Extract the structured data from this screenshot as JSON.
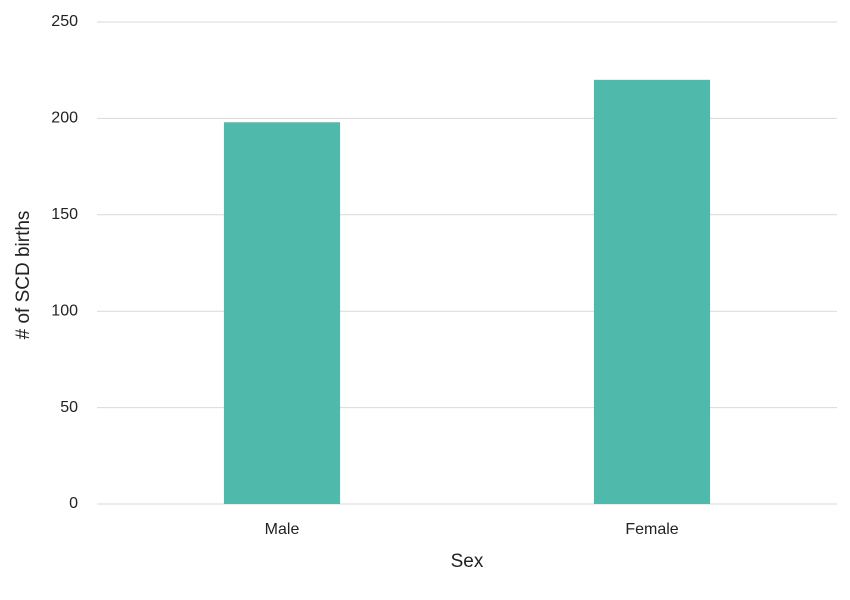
{
  "chart_data": {
    "type": "bar",
    "categories": [
      "Male",
      "Female"
    ],
    "values": [
      198,
      220
    ],
    "color": "#4fbaab",
    "xlabel": "Sex",
    "ylabel": "# of SCD births",
    "ylim": [
      0,
      250
    ],
    "yticks": [
      0,
      50,
      100,
      150,
      200,
      250
    ],
    "grid": true
  }
}
